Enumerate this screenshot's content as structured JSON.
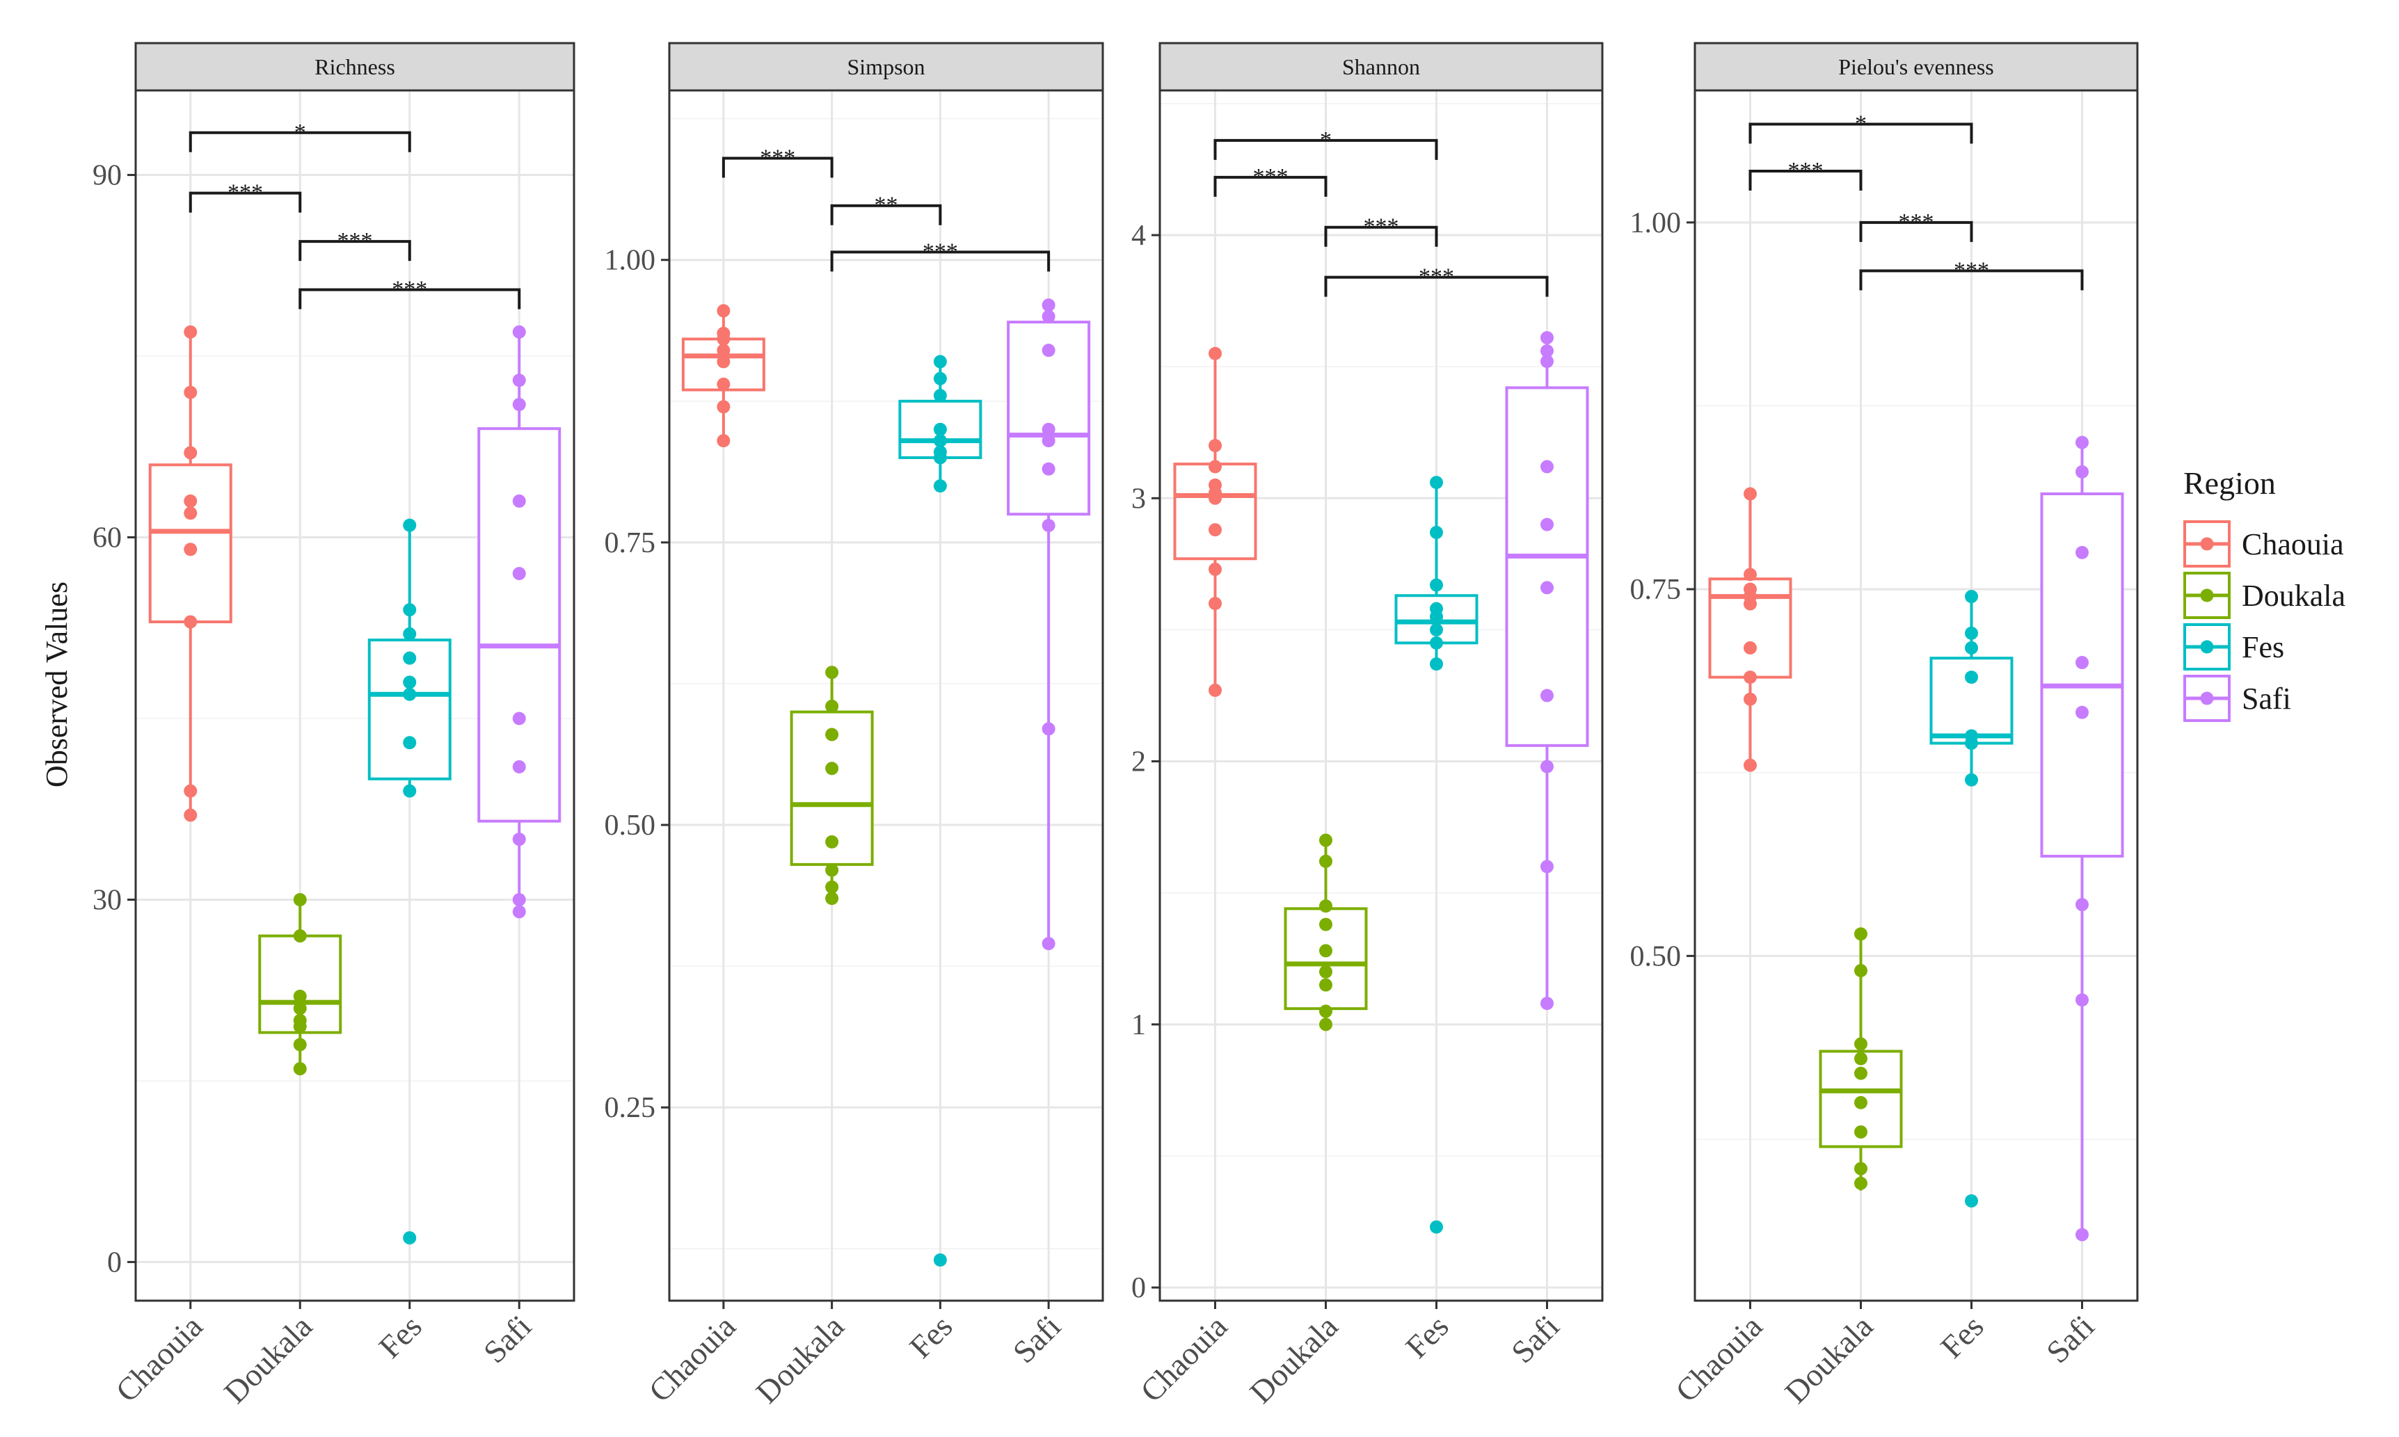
{
  "chart_data": {
    "type": "boxplot",
    "y_axis_label": "Observed Values",
    "x_categories": [
      "Chaouia",
      "Doukala",
      "Fes",
      "Safi"
    ],
    "legend": {
      "title": "Region",
      "items": [
        {
          "label": "Chaouia",
          "color": "#F8766D"
        },
        {
          "label": "Doukala",
          "color": "#7CAE00"
        },
        {
          "label": "Fes",
          "color": "#00BFC4"
        },
        {
          "label": "Safi",
          "color": "#C77CFF"
        }
      ]
    },
    "panels": [
      {
        "title": "Richness",
        "ylim": [
          -3.2,
          97
        ],
        "yticks": [
          0,
          30,
          60,
          90
        ],
        "ytick_labels": [
          "0",
          "30",
          "60",
          "90"
        ],
        "groups": [
          {
            "name": "Chaouia",
            "box": {
              "lower_whisker": 37,
              "q1": 53,
              "median": 60.5,
              "q3": 66,
              "upper_whisker": 77
            },
            "points": [
              77,
              72,
              67,
              63,
              62,
              59,
              53,
              39,
              37
            ]
          },
          {
            "name": "Doukala",
            "box": {
              "lower_whisker": 16,
              "q1": 19,
              "median": 21.5,
              "q3": 27,
              "upper_whisker": 30
            },
            "points": [
              30,
              27,
              22,
              21,
              20,
              19.5,
              18,
              16
            ]
          },
          {
            "name": "Fes",
            "box": {
              "lower_whisker": 39,
              "q1": 40,
              "median": 47,
              "q3": 51.5,
              "upper_whisker": 61
            },
            "points": [
              61,
              54,
              52,
              50,
              48,
              47,
              43,
              39,
              2
            ]
          },
          {
            "name": "Safi",
            "box": {
              "lower_whisker": 29,
              "q1": 36.5,
              "median": 51,
              "q3": 69,
              "upper_whisker": 77
            },
            "points": [
              77,
              73,
              71,
              63,
              57,
              45,
              41,
              35,
              30,
              29
            ]
          }
        ],
        "significance": [
          {
            "from": "Chaouia",
            "to": "Fes",
            "y": 93.5,
            "label": "*"
          },
          {
            "from": "Chaouia",
            "to": "Doukala",
            "y": 88.5,
            "label": "***"
          },
          {
            "from": "Doukala",
            "to": "Fes",
            "y": 84.5,
            "label": "***"
          },
          {
            "from": "Doukala",
            "to": "Safi",
            "y": 80.5,
            "label": "***"
          }
        ]
      },
      {
        "title": "Simpson",
        "ylim": [
          0.079,
          1.15
        ],
        "yticks": [
          0.25,
          0.5,
          0.75,
          1.0
        ],
        "ytick_labels": [
          "0.25",
          "0.50",
          "0.75",
          "1.00"
        ],
        "groups": [
          {
            "name": "Chaouia",
            "box": {
              "lower_whisker": 0.84,
              "q1": 0.885,
              "median": 0.915,
              "q3": 0.93,
              "upper_whisker": 0.955
            },
            "points": [
              0.955,
              0.935,
              0.93,
              0.92,
              0.91,
              0.89,
              0.87,
              0.84
            ]
          },
          {
            "name": "Doukala",
            "box": {
              "lower_whisker": 0.435,
              "q1": 0.465,
              "median": 0.518,
              "q3": 0.6,
              "upper_whisker": 0.635
            },
            "points": [
              0.635,
              0.605,
              0.58,
              0.55,
              0.485,
              0.46,
              0.445,
              0.435
            ]
          },
          {
            "name": "Fes",
            "box": {
              "lower_whisker": 0.8,
              "q1": 0.825,
              "median": 0.84,
              "q3": 0.875,
              "upper_whisker": 0.91
            },
            "points": [
              0.91,
              0.895,
              0.88,
              0.85,
              0.84,
              0.83,
              0.825,
              0.8,
              0.115
            ]
          },
          {
            "name": "Safi",
            "box": {
              "lower_whisker": 0.39,
              "q1": 0.775,
              "median": 0.845,
              "q3": 0.945,
              "upper_whisker": 0.96
            },
            "points": [
              0.96,
              0.95,
              0.92,
              0.85,
              0.84,
              0.815,
              0.765,
              0.585,
              0.395
            ]
          }
        ],
        "significance": [
          {
            "from": "Chaouia",
            "to": "Doukala",
            "y": 1.09,
            "label": "***"
          },
          {
            "from": "Doukala",
            "to": "Fes",
            "y": 1.048,
            "label": "**"
          },
          {
            "from": "Doukala",
            "to": "Safi",
            "y": 1.007,
            "label": "***"
          }
        ]
      },
      {
        "title": "Shannon",
        "ylim": [
          -0.05,
          4.55
        ],
        "yticks": [
          0,
          1,
          2,
          3,
          4
        ],
        "ytick_labels": [
          "0",
          "1",
          "2",
          "3",
          "4"
        ],
        "groups": [
          {
            "name": "Chaouia",
            "box": {
              "lower_whisker": 2.27,
              "q1": 2.77,
              "median": 3.01,
              "q3": 3.13,
              "upper_whisker": 3.55
            },
            "points": [
              3.55,
              3.2,
              3.12,
              3.05,
              3.02,
              3.0,
              2.88,
              2.73,
              2.6,
              2.27
            ]
          },
          {
            "name": "Doukala",
            "box": {
              "lower_whisker": 1.0,
              "q1": 1.06,
              "median": 1.23,
              "q3": 1.44,
              "upper_whisker": 1.7
            },
            "points": [
              1.7,
              1.62,
              1.45,
              1.38,
              1.28,
              1.2,
              1.15,
              1.05,
              1.0
            ]
          },
          {
            "name": "Fes",
            "box": {
              "lower_whisker": 2.37,
              "q1": 2.45,
              "median": 2.53,
              "q3": 2.63,
              "upper_whisker": 3.06
            },
            "points": [
              3.06,
              2.87,
              2.67,
              2.58,
              2.55,
              2.5,
              2.45,
              2.37,
              0.23
            ]
          },
          {
            "name": "Safi",
            "box": {
              "lower_whisker": 1.08,
              "q1": 2.06,
              "median": 2.78,
              "q3": 3.42,
              "upper_whisker": 3.61
            },
            "points": [
              3.61,
              3.56,
              3.52,
              3.12,
              2.9,
              2.66,
              2.25,
              1.98,
              1.6,
              1.08
            ]
          }
        ],
        "significance": [
          {
            "from": "Chaouia",
            "to": "Fes",
            "y": 4.36,
            "label": "*"
          },
          {
            "from": "Chaouia",
            "to": "Doukala",
            "y": 4.22,
            "label": "***"
          },
          {
            "from": "Doukala",
            "to": "Fes",
            "y": 4.03,
            "label": "***"
          },
          {
            "from": "Doukala",
            "to": "Safi",
            "y": 3.84,
            "label": "***"
          }
        ]
      },
      {
        "title": "Pielou's evenness",
        "ylim": [
          0.265,
          1.09
        ],
        "yticks": [
          0.5,
          0.75,
          1.0
        ],
        "ytick_labels": [
          "0.50",
          "0.75",
          "1.00"
        ],
        "groups": [
          {
            "name": "Chaouia",
            "box": {
              "lower_whisker": 0.63,
              "q1": 0.69,
              "median": 0.745,
              "q3": 0.757,
              "upper_whisker": 0.815
            },
            "points": [
              0.815,
              0.76,
              0.75,
              0.745,
              0.74,
              0.71,
              0.69,
              0.675,
              0.63
            ]
          },
          {
            "name": "Doukala",
            "box": {
              "lower_whisker": 0.34,
              "q1": 0.37,
              "median": 0.408,
              "q3": 0.435,
              "upper_whisker": 0.515
            },
            "points": [
              0.515,
              0.49,
              0.44,
              0.43,
              0.42,
              0.4,
              0.38,
              0.355,
              0.345
            ]
          },
          {
            "name": "Fes",
            "box": {
              "lower_whisker": 0.62,
              "q1": 0.645,
              "median": 0.65,
              "q3": 0.703,
              "upper_whisker": 0.745
            },
            "points": [
              0.745,
              0.72,
              0.71,
              0.69,
              0.65,
              0.645,
              0.62,
              0.333
            ]
          },
          {
            "name": "Safi",
            "box": {
              "lower_whisker": 0.31,
              "q1": 0.568,
              "median": 0.684,
              "q3": 0.815,
              "upper_whisker": 0.85
            },
            "points": [
              0.85,
              0.83,
              0.775,
              0.7,
              0.666,
              0.535,
              0.47,
              0.31
            ]
          }
        ],
        "significance": [
          {
            "from": "Chaouia",
            "to": "Fes",
            "y": 1.067,
            "label": "*"
          },
          {
            "from": "Chaouia",
            "to": "Doukala",
            "y": 1.035,
            "label": "***"
          },
          {
            "from": "Doukala",
            "to": "Fes",
            "y": 1.0,
            "label": "***"
          },
          {
            "from": "Doukala",
            "to": "Safi",
            "y": 0.967,
            "label": "***"
          }
        ]
      }
    ]
  }
}
